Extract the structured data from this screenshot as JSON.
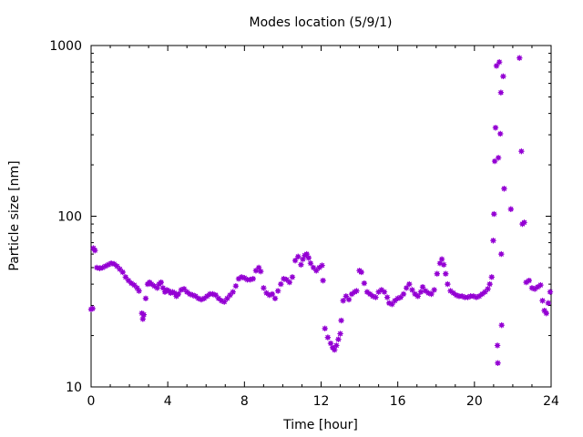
{
  "chart_data": {
    "type": "scatter",
    "title": "Modes location (5/9/1)",
    "xlabel": "Time [hour]",
    "ylabel": "Particle size [nm]",
    "xlim": [
      0,
      24
    ],
    "ylim": [
      10,
      1000
    ],
    "yscale": "log",
    "grid": false,
    "legend": "none",
    "marker_color": "#9400d3",
    "x_ticks": [
      0,
      4,
      8,
      12,
      16,
      20,
      24
    ],
    "y_ticks": [
      10,
      100,
      1000
    ],
    "x_tick_labels": [
      "0",
      "4",
      "8",
      "12",
      "16",
      "20",
      "24"
    ],
    "y_tick_labels": [
      "10",
      "100",
      "1000"
    ],
    "points": [
      [
        0.0,
        28.5
      ],
      [
        0.08,
        28.8
      ],
      [
        0.12,
        65
      ],
      [
        0.2,
        63
      ],
      [
        0.3,
        50
      ],
      [
        0.45,
        49.5
      ],
      [
        0.6,
        50
      ],
      [
        0.75,
        51
      ],
      [
        0.9,
        52
      ],
      [
        1.05,
        53
      ],
      [
        1.2,
        52.5
      ],
      [
        1.35,
        51
      ],
      [
        1.5,
        49
      ],
      [
        1.65,
        47
      ],
      [
        1.8,
        44
      ],
      [
        1.95,
        42
      ],
      [
        2.1,
        40.5
      ],
      [
        2.25,
        39.5
      ],
      [
        2.4,
        38
      ],
      [
        2.5,
        36.5
      ],
      [
        2.65,
        27
      ],
      [
        2.7,
        25
      ],
      [
        2.75,
        26.5
      ],
      [
        2.85,
        33
      ],
      [
        2.95,
        40
      ],
      [
        3.05,
        41
      ],
      [
        3.15,
        40
      ],
      [
        3.3,
        39
      ],
      [
        3.45,
        38
      ],
      [
        3.55,
        40
      ],
      [
        3.65,
        41
      ],
      [
        3.75,
        38
      ],
      [
        3.85,
        36
      ],
      [
        3.95,
        37
      ],
      [
        4.05,
        36.5
      ],
      [
        4.15,
        35.5
      ],
      [
        4.25,
        36
      ],
      [
        4.35,
        35.5
      ],
      [
        4.45,
        34
      ],
      [
        4.55,
        35
      ],
      [
        4.7,
        37
      ],
      [
        4.85,
        37.5
      ],
      [
        5.0,
        36
      ],
      [
        5.15,
        35
      ],
      [
        5.3,
        34.5
      ],
      [
        5.45,
        34
      ],
      [
        5.6,
        33
      ],
      [
        5.75,
        32.5
      ],
      [
        5.9,
        33
      ],
      [
        6.05,
        34
      ],
      [
        6.2,
        35
      ],
      [
        6.35,
        35
      ],
      [
        6.5,
        34.5
      ],
      [
        6.65,
        33
      ],
      [
        6.8,
        32
      ],
      [
        6.95,
        31.5
      ],
      [
        7.1,
        33
      ],
      [
        7.25,
        34.5
      ],
      [
        7.4,
        36
      ],
      [
        7.55,
        39
      ],
      [
        7.7,
        43
      ],
      [
        7.85,
        44
      ],
      [
        8.0,
        43.5
      ],
      [
        8.15,
        42.5
      ],
      [
        8.3,
        42.5
      ],
      [
        8.45,
        43
      ],
      [
        8.6,
        48
      ],
      [
        8.75,
        50
      ],
      [
        8.85,
        47.5
      ],
      [
        9.0,
        38
      ],
      [
        9.15,
        35.5
      ],
      [
        9.3,
        34.5
      ],
      [
        9.45,
        35
      ],
      [
        9.6,
        33
      ],
      [
        9.75,
        36.5
      ],
      [
        9.9,
        40
      ],
      [
        10.05,
        43
      ],
      [
        10.2,
        42.5
      ],
      [
        10.35,
        41
      ],
      [
        10.5,
        44
      ],
      [
        10.65,
        55
      ],
      [
        10.8,
        58
      ],
      [
        10.95,
        52
      ],
      [
        11.05,
        56
      ],
      [
        11.15,
        59
      ],
      [
        11.25,
        60
      ],
      [
        11.35,
        57
      ],
      [
        11.45,
        53
      ],
      [
        11.6,
        50
      ],
      [
        11.75,
        48
      ],
      [
        11.9,
        50
      ],
      [
        12.05,
        51.5
      ],
      [
        12.1,
        42
      ],
      [
        12.2,
        22
      ],
      [
        12.35,
        19.5
      ],
      [
        12.5,
        18
      ],
      [
        12.6,
        17
      ],
      [
        12.7,
        16.5
      ],
      [
        12.8,
        17.5
      ],
      [
        12.9,
        19
      ],
      [
        13.0,
        20.5
      ],
      [
        13.05,
        24.5
      ],
      [
        13.15,
        32
      ],
      [
        13.3,
        34
      ],
      [
        13.45,
        32.5
      ],
      [
        13.6,
        35
      ],
      [
        13.75,
        36
      ],
      [
        13.85,
        36.5
      ],
      [
        14.0,
        48
      ],
      [
        14.1,
        47
      ],
      [
        14.25,
        40.5
      ],
      [
        14.4,
        36
      ],
      [
        14.55,
        35
      ],
      [
        14.7,
        34
      ],
      [
        14.85,
        33.5
      ],
      [
        15.0,
        36
      ],
      [
        15.15,
        37
      ],
      [
        15.3,
        36
      ],
      [
        15.45,
        33.5
      ],
      [
        15.55,
        31
      ],
      [
        15.7,
        30.5
      ],
      [
        15.85,
        32
      ],
      [
        16.0,
        33
      ],
      [
        16.15,
        33.5
      ],
      [
        16.3,
        35
      ],
      [
        16.45,
        38
      ],
      [
        16.6,
        40
      ],
      [
        16.75,
        37
      ],
      [
        16.9,
        35
      ],
      [
        17.05,
        34
      ],
      [
        17.2,
        36
      ],
      [
        17.3,
        38.5
      ],
      [
        17.45,
        36.5
      ],
      [
        17.6,
        35.5
      ],
      [
        17.75,
        35
      ],
      [
        17.9,
        37
      ],
      [
        18.05,
        46
      ],
      [
        18.2,
        53
      ],
      [
        18.3,
        56
      ],
      [
        18.4,
        52
      ],
      [
        18.5,
        46
      ],
      [
        18.6,
        40
      ],
      [
        18.75,
        36.5
      ],
      [
        18.9,
        35.5
      ],
      [
        19.05,
        34.5
      ],
      [
        19.2,
        34
      ],
      [
        19.35,
        34
      ],
      [
        19.5,
        33.5
      ],
      [
        19.65,
        33.5
      ],
      [
        19.8,
        34
      ],
      [
        19.95,
        34
      ],
      [
        20.1,
        33.5
      ],
      [
        20.25,
        34
      ],
      [
        20.4,
        35
      ],
      [
        20.55,
        36
      ],
      [
        20.7,
        37.5
      ],
      [
        20.8,
        40
      ],
      [
        20.9,
        44
      ],
      [
        20.98,
        72
      ],
      [
        21.02,
        103
      ],
      [
        21.06,
        210
      ],
      [
        21.1,
        330
      ],
      [
        21.15,
        760
      ],
      [
        21.2,
        17.5
      ],
      [
        21.22,
        13.8
      ],
      [
        21.25,
        220
      ],
      [
        21.3,
        800
      ],
      [
        21.35,
        304
      ],
      [
        21.38,
        530
      ],
      [
        21.4,
        60
      ],
      [
        21.42,
        23
      ],
      [
        21.5,
        660
      ],
      [
        21.55,
        145
      ],
      [
        21.9,
        110
      ],
      [
        22.35,
        845
      ],
      [
        22.45,
        240
      ],
      [
        22.5,
        90
      ],
      [
        22.6,
        92
      ],
      [
        22.7,
        41
      ],
      [
        22.85,
        42
      ],
      [
        23.0,
        38
      ],
      [
        23.15,
        37.5
      ],
      [
        23.3,
        38.5
      ],
      [
        23.45,
        39.5
      ],
      [
        23.55,
        32
      ],
      [
        23.65,
        28
      ],
      [
        23.75,
        27
      ],
      [
        23.85,
        31
      ],
      [
        23.95,
        36
      ]
    ]
  }
}
